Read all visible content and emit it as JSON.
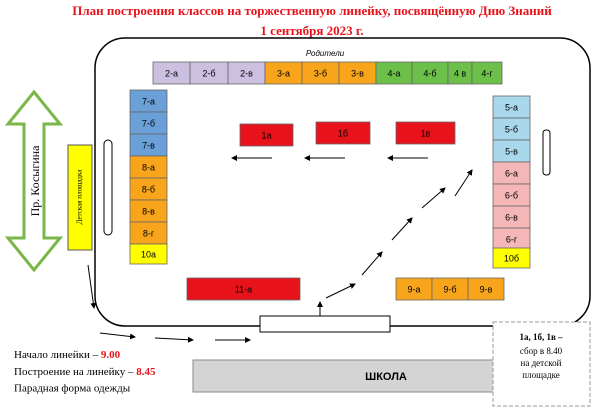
{
  "title": {
    "line1": "План построения классов на торжественную линейку, посвящённую Дню Знаний",
    "line2": "1 сентября 2023 г."
  },
  "parents_label": "Родители",
  "top_row": [
    "2-а",
    "2-б",
    "2-в",
    "3-а",
    "3-б",
    "3-в",
    "4-а",
    "4-б",
    "4 в",
    "4-г"
  ],
  "left_column": [
    "7-а",
    "7-б",
    "7-в",
    "8-а",
    "8-б",
    "8-в",
    "8-г",
    "10а"
  ],
  "right_column": [
    "5-а",
    "5-б",
    "5-в",
    "6-а",
    "6-б",
    "6-в",
    "6-г",
    "10б"
  ],
  "first_grades": [
    "1а",
    "1б",
    "1в"
  ],
  "bottom_left": "11-а",
  "bottom_right": [
    "9-а",
    "9-б",
    "9-в"
  ],
  "street": "Пр. Косыгина",
  "playground": "Детская площадка",
  "school": "ШКОЛА",
  "info": {
    "start_label": "Начало линейки – ",
    "start_time": "9.00",
    "line_up_label": "Построение на линейку – ",
    "line_up_time": "8.45",
    "dress": "Парадная форма одежды"
  },
  "note": [
    "1а, 1б, 1в –",
    "сбор в 8.40",
    "на детской",
    "площадке"
  ]
}
